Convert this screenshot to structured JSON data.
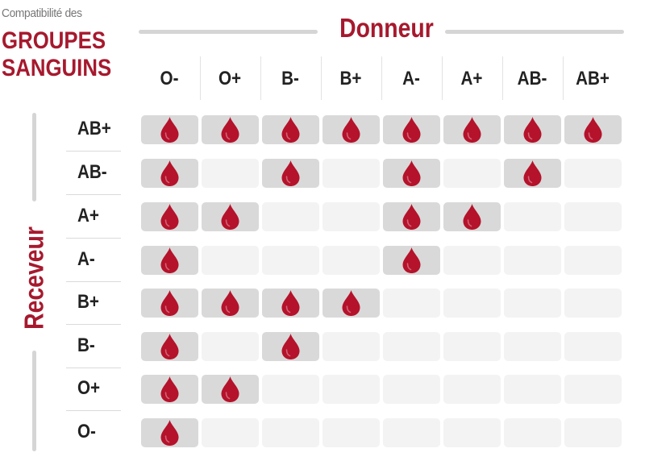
{
  "title": {
    "small": "Compatibilité des",
    "line1": "GROUPES",
    "line2": "SANGUINS"
  },
  "donor_label": "Donneur",
  "recipient_label": "Receveur",
  "colors": {
    "accent": "#a6192e",
    "drop": "#b5122b",
    "cell_compatible": "#d9d9d9",
    "cell_empty": "#f3f3f3",
    "lines": "#d5d5d5"
  },
  "icon": "blood-drop-icon",
  "donor_types": [
    "O-",
    "O+",
    "B-",
    "B+",
    "A-",
    "A+",
    "AB-",
    "AB+"
  ],
  "recipient_types": [
    "AB+",
    "AB-",
    "A+",
    "A-",
    "B+",
    "B-",
    "O+",
    "O-"
  ],
  "compatibility": [
    [
      1,
      1,
      1,
      1,
      1,
      1,
      1,
      1
    ],
    [
      1,
      0,
      1,
      0,
      1,
      0,
      1,
      0
    ],
    [
      1,
      1,
      0,
      0,
      1,
      1,
      0,
      0
    ],
    [
      1,
      0,
      0,
      0,
      1,
      0,
      0,
      0
    ],
    [
      1,
      1,
      1,
      1,
      0,
      0,
      0,
      0
    ],
    [
      1,
      0,
      1,
      0,
      0,
      0,
      0,
      0
    ],
    [
      1,
      1,
      0,
      0,
      0,
      0,
      0,
      0
    ],
    [
      1,
      0,
      0,
      0,
      0,
      0,
      0,
      0
    ]
  ]
}
